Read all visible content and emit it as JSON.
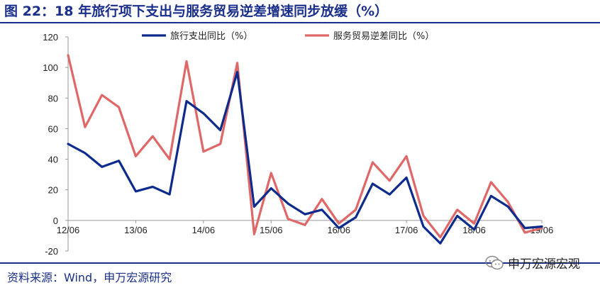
{
  "title": "图 22：18 年旅行项下支出与服务贸易逆差增速同步放缓（%）",
  "source": "资料来源：Wind，申万宏源研究",
  "watermark": "申万宏源宏观",
  "colors": {
    "title": "#1a2f8a",
    "series1": "#0d2b8c",
    "series2": "#e06767"
  },
  "chart_data": {
    "type": "line",
    "x": [
      "12/06",
      "12/09",
      "12/12",
      "13/03",
      "13/06",
      "13/09",
      "13/12",
      "14/03",
      "14/06",
      "14/09",
      "14/12",
      "15/03",
      "15/06",
      "15/09",
      "15/12",
      "16/03",
      "16/06",
      "16/09",
      "16/12",
      "17/03",
      "17/06",
      "17/09",
      "17/12",
      "18/03",
      "18/06",
      "18/09",
      "18/12",
      "19/03",
      "19/06"
    ],
    "x_tick_labels": [
      "12/06",
      "13/06",
      "14/06",
      "15/06",
      "16/06",
      "17/06",
      "18/06",
      "19/06"
    ],
    "ylim": [
      -20,
      120
    ],
    "yticks": [
      -20,
      0,
      20,
      40,
      60,
      80,
      100,
      120
    ],
    "grid": false,
    "legend_position": "top",
    "series": [
      {
        "name": "旅行支出同比（%）",
        "values": [
          50,
          44,
          35,
          39,
          19,
          22,
          17,
          78,
          70,
          59,
          97,
          9,
          21,
          11,
          4,
          7,
          -5,
          2,
          24,
          17,
          28,
          -4,
          -15,
          3,
          -6,
          16,
          9,
          -5,
          -4
        ]
      },
      {
        "name": "服务贸易逆差同比（%）",
        "values": [
          108,
          61,
          82,
          74,
          42,
          55,
          40,
          104,
          45,
          50,
          103,
          -9,
          31,
          1,
          -3,
          14,
          -2,
          7,
          38,
          26,
          42,
          3,
          -11,
          7,
          -2,
          25,
          12,
          -8,
          -5
        ]
      }
    ]
  }
}
